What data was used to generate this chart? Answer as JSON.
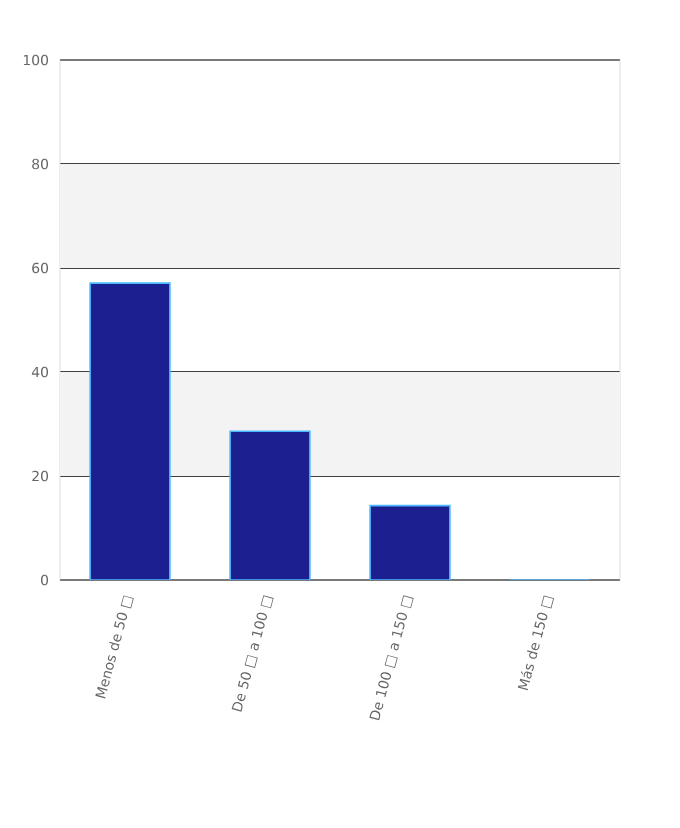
{
  "chart_data": {
    "type": "bar",
    "categories": [
      "Menos de 50 □",
      "De 50 □ a 100 □",
      "De 100 □ a 150 □",
      "Más de 150 □"
    ],
    "values": [
      57.1,
      28.6,
      14.3,
      0
    ],
    "color": "#1c1f8f",
    "ylim": [
      0,
      100
    ],
    "yticks": [
      0,
      20,
      40,
      60,
      80,
      100
    ],
    "grid": "y",
    "bands": [
      {
        "axis": "y",
        "from": 20,
        "to": 40,
        "color": "#f3f3f3"
      },
      {
        "axis": "y",
        "from": 60,
        "to": 80,
        "color": "#f3f3f3"
      }
    ]
  }
}
